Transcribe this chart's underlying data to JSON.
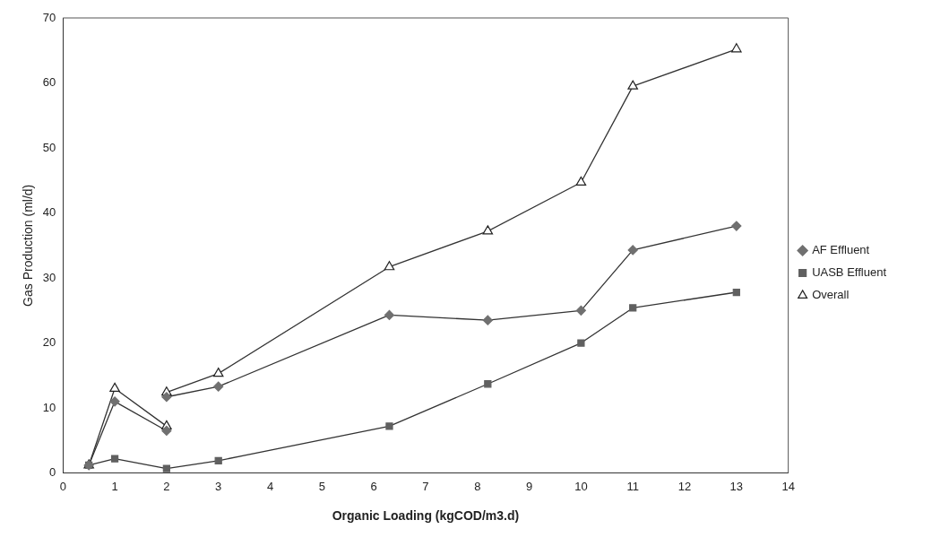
{
  "chart_data": {
    "type": "line",
    "xlabel": "Organic Loading (kgCOD/m3.d)",
    "ylabel": "Gas Production (ml/d)",
    "xlim": [
      0,
      14
    ],
    "xticks": [
      0,
      1,
      2,
      3,
      4,
      5,
      6,
      7,
      8,
      9,
      10,
      11,
      12,
      13,
      14
    ],
    "ylim": [
      0,
      70
    ],
    "yticks": [
      0,
      10,
      20,
      30,
      40,
      50,
      60,
      70
    ],
    "grid": false,
    "legend": "right",
    "line_style": "solid",
    "series": [
      {
        "name": "AF Effluent",
        "color": "#707070",
        "marker": "diamond",
        "x": [
          2,
          3,
          6.3,
          8.2,
          10,
          11,
          13
        ],
        "values": [
          11.7,
          13.3,
          24.3,
          23.5,
          25,
          34.3,
          38
        ]
      },
      {
        "color": "#707070",
        "marker": "diamond",
        "x": [
          0.5,
          1,
          2
        ],
        "values": [
          1.2,
          11,
          6.5
        ]
      },
      {
        "name": "UASB Effluent",
        "color": "#606060",
        "marker": "square",
        "x": [
          0.5,
          1,
          2,
          3,
          6.3,
          8.2,
          10,
          11,
          13
        ],
        "values": [
          1.2,
          2.2,
          0.7,
          1.9,
          7.2,
          13.7,
          20,
          25.4,
          27.8
        ]
      },
      {
        "name": "Overall",
        "color": "#ffffff",
        "marker": "triangle",
        "x": [
          2,
          3,
          6.3,
          8.2,
          10,
          11,
          13
        ],
        "values": [
          12.4,
          15.3,
          31.7,
          37.2,
          44.7,
          59.5,
          65.2
        ]
      },
      {
        "color": "#ffffff",
        "marker": "triangle",
        "x": [
          0.5,
          1,
          2
        ],
        "values": [
          1.2,
          13,
          7.2
        ]
      }
    ]
  }
}
